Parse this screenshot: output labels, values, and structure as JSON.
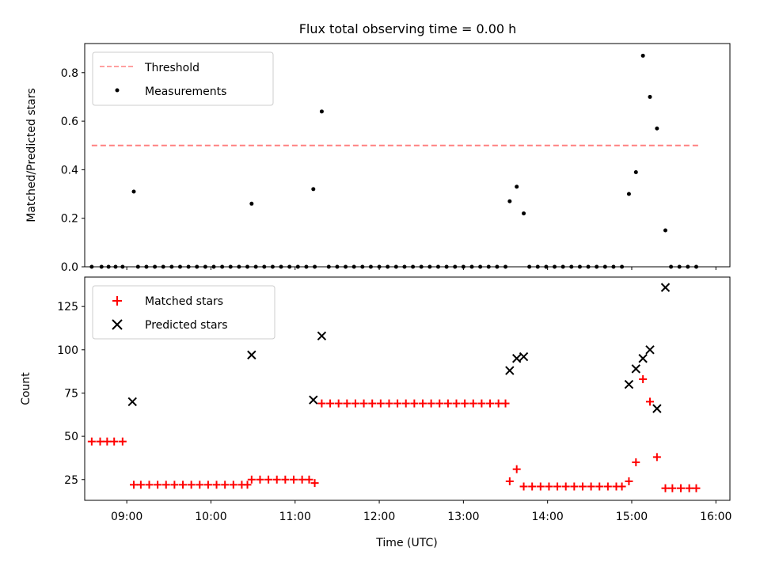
{
  "chart_data": [
    {
      "type": "scatter",
      "title": "Flux total observing time = 0.00 h",
      "ylabel": "Matched/Predicted stars",
      "xlabel": "",
      "xlim": [
        "08:30",
        "16:10"
      ],
      "ylim": [
        0,
        0.92
      ],
      "yticks": [
        0.0,
        0.2,
        0.4,
        0.6,
        0.8
      ],
      "ytick_labels": [
        "0.0",
        "0.2",
        "0.4",
        "0.6",
        "0.8"
      ],
      "xticks": [
        "09:00",
        "10:00",
        "11:00",
        "12:00",
        "13:00",
        "14:00",
        "15:00",
        "16:00"
      ],
      "grid": false,
      "legend_position": "top-left",
      "legend": [
        "Threshold",
        "Measurements"
      ],
      "threshold": {
        "name": "Threshold",
        "value": 0.5,
        "x_range": [
          "08:35",
          "15:48"
        ],
        "color": "#ff8080",
        "style": "dashed"
      },
      "series": [
        {
          "name": "Measurements",
          "color": "#000000",
          "points": [
            [
              "08:35",
              0
            ],
            [
              "08:42",
              0
            ],
            [
              "08:47",
              0
            ],
            [
              "08:52",
              0
            ],
            [
              "08:57",
              0
            ],
            [
              "09:05",
              0.31
            ],
            [
              "09:08",
              0
            ],
            [
              "09:14",
              0
            ],
            [
              "09:20",
              0
            ],
            [
              "09:26",
              0
            ],
            [
              "09:32",
              0
            ],
            [
              "09:38",
              0
            ],
            [
              "09:44",
              0
            ],
            [
              "09:50",
              0
            ],
            [
              "09:56",
              0
            ],
            [
              "10:02",
              0
            ],
            [
              "10:08",
              0
            ],
            [
              "10:14",
              0
            ],
            [
              "10:20",
              0
            ],
            [
              "10:26",
              0
            ],
            [
              "10:32",
              0
            ],
            [
              "10:29",
              0.26
            ],
            [
              "10:38",
              0
            ],
            [
              "10:44",
              0
            ],
            [
              "10:50",
              0
            ],
            [
              "10:56",
              0
            ],
            [
              "11:02",
              0
            ],
            [
              "11:08",
              0
            ],
            [
              "11:14",
              0
            ],
            [
              "11:13",
              0.32
            ],
            [
              "11:19",
              0.64
            ],
            [
              "11:24",
              0
            ],
            [
              "11:30",
              0
            ],
            [
              "11:36",
              0
            ],
            [
              "11:42",
              0
            ],
            [
              "11:48",
              0
            ],
            [
              "11:54",
              0
            ],
            [
              "12:00",
              0
            ],
            [
              "12:06",
              0
            ],
            [
              "12:12",
              0
            ],
            [
              "12:18",
              0
            ],
            [
              "12:24",
              0
            ],
            [
              "12:30",
              0
            ],
            [
              "12:36",
              0
            ],
            [
              "12:42",
              0
            ],
            [
              "12:48",
              0
            ],
            [
              "12:54",
              0
            ],
            [
              "13:00",
              0
            ],
            [
              "13:06",
              0
            ],
            [
              "13:12",
              0
            ],
            [
              "13:18",
              0
            ],
            [
              "13:24",
              0
            ],
            [
              "13:30",
              0
            ],
            [
              "13:33",
              0.27
            ],
            [
              "13:38",
              0.33
            ],
            [
              "13:43",
              0.22
            ],
            [
              "13:47",
              0
            ],
            [
              "13:53",
              0
            ],
            [
              "13:59",
              0
            ],
            [
              "14:05",
              0
            ],
            [
              "14:11",
              0
            ],
            [
              "14:17",
              0
            ],
            [
              "14:23",
              0
            ],
            [
              "14:29",
              0
            ],
            [
              "14:35",
              0
            ],
            [
              "14:41",
              0
            ],
            [
              "14:47",
              0
            ],
            [
              "14:53",
              0
            ],
            [
              "14:58",
              0.3
            ],
            [
              "15:03",
              0.39
            ],
            [
              "15:08",
              0.87
            ],
            [
              "15:13",
              0.7
            ],
            [
              "15:18",
              0.57
            ],
            [
              "15:24",
              0.15
            ],
            [
              "15:28",
              0
            ],
            [
              "15:34",
              0
            ],
            [
              "15:40",
              0
            ],
            [
              "15:46",
              0
            ]
          ]
        }
      ]
    },
    {
      "type": "scatter",
      "title": "",
      "ylabel": "Count",
      "xlabel": "Time (UTC)",
      "xlim": [
        "08:30",
        "16:10"
      ],
      "ylim": [
        13,
        142
      ],
      "yticks": [
        25,
        50,
        75,
        100,
        125
      ],
      "ytick_labels": [
        "25",
        "50",
        "75",
        "100",
        "125"
      ],
      "xticks": [
        "09:00",
        "10:00",
        "11:00",
        "12:00",
        "13:00",
        "14:00",
        "15:00",
        "16:00"
      ],
      "xtick_labels": [
        "09:00",
        "10:00",
        "11:00",
        "12:00",
        "13:00",
        "14:00",
        "15:00",
        "16:00"
      ],
      "grid": false,
      "legend_position": "top-left",
      "legend": [
        "Matched stars",
        "Predicted stars"
      ],
      "series": [
        {
          "name": "Matched stars",
          "marker": "plus",
          "color": "#ff0000",
          "points": [
            [
              "08:35",
              47
            ],
            [
              "08:41",
              47
            ],
            [
              "08:46",
              47
            ],
            [
              "08:51",
              47
            ],
            [
              "08:57",
              47
            ],
            [
              "09:05",
              22
            ],
            [
              "09:10",
              22
            ],
            [
              "09:16",
              22
            ],
            [
              "09:22",
              22
            ],
            [
              "09:28",
              22
            ],
            [
              "09:34",
              22
            ],
            [
              "09:40",
              22
            ],
            [
              "09:46",
              22
            ],
            [
              "09:52",
              22
            ],
            [
              "09:58",
              22
            ],
            [
              "10:04",
              22
            ],
            [
              "10:10",
              22
            ],
            [
              "10:16",
              22
            ],
            [
              "10:22",
              22
            ],
            [
              "10:26",
              22
            ],
            [
              "10:29",
              25
            ],
            [
              "10:35",
              25
            ],
            [
              "10:41",
              25
            ],
            [
              "10:47",
              25
            ],
            [
              "10:53",
              25
            ],
            [
              "10:59",
              25
            ],
            [
              "11:05",
              25
            ],
            [
              "11:10",
              25
            ],
            [
              "11:14",
              23
            ],
            [
              "11:19",
              69
            ],
            [
              "11:25",
              69
            ],
            [
              "11:31",
              69
            ],
            [
              "11:37",
              69
            ],
            [
              "11:43",
              69
            ],
            [
              "11:49",
              69
            ],
            [
              "11:55",
              69
            ],
            [
              "12:01",
              69
            ],
            [
              "12:07",
              69
            ],
            [
              "12:13",
              69
            ],
            [
              "12:19",
              69
            ],
            [
              "12:25",
              69
            ],
            [
              "12:31",
              69
            ],
            [
              "12:37",
              69
            ],
            [
              "12:43",
              69
            ],
            [
              "12:49",
              69
            ],
            [
              "12:55",
              69
            ],
            [
              "13:01",
              69
            ],
            [
              "13:07",
              69
            ],
            [
              "13:13",
              69
            ],
            [
              "13:19",
              69
            ],
            [
              "13:25",
              69
            ],
            [
              "13:30",
              69
            ],
            [
              "13:33",
              24
            ],
            [
              "13:38",
              31
            ],
            [
              "13:43",
              21
            ],
            [
              "13:49",
              21
            ],
            [
              "13:55",
              21
            ],
            [
              "14:01",
              21
            ],
            [
              "14:07",
              21
            ],
            [
              "14:13",
              21
            ],
            [
              "14:19",
              21
            ],
            [
              "14:25",
              21
            ],
            [
              "14:31",
              21
            ],
            [
              "14:37",
              21
            ],
            [
              "14:43",
              21
            ],
            [
              "14:49",
              21
            ],
            [
              "14:53",
              21
            ],
            [
              "14:58",
              24
            ],
            [
              "15:03",
              35
            ],
            [
              "15:08",
              83
            ],
            [
              "15:13",
              70
            ],
            [
              "15:18",
              38
            ],
            [
              "15:24",
              20
            ],
            [
              "15:29",
              20
            ],
            [
              "15:35",
              20
            ],
            [
              "15:41",
              20
            ],
            [
              "15:46",
              20
            ]
          ]
        },
        {
          "name": "Predicted stars",
          "marker": "x",
          "color": "#000000",
          "points": [
            [
              "09:04",
              70
            ],
            [
              "10:29",
              97
            ],
            [
              "11:13",
              71
            ],
            [
              "11:19",
              108
            ],
            [
              "13:33",
              88
            ],
            [
              "13:38",
              95
            ],
            [
              "13:43",
              96
            ],
            [
              "14:58",
              80
            ],
            [
              "15:03",
              89
            ],
            [
              "15:08",
              95
            ],
            [
              "15:13",
              100
            ],
            [
              "15:18",
              66
            ],
            [
              "15:24",
              136
            ]
          ]
        }
      ]
    }
  ]
}
